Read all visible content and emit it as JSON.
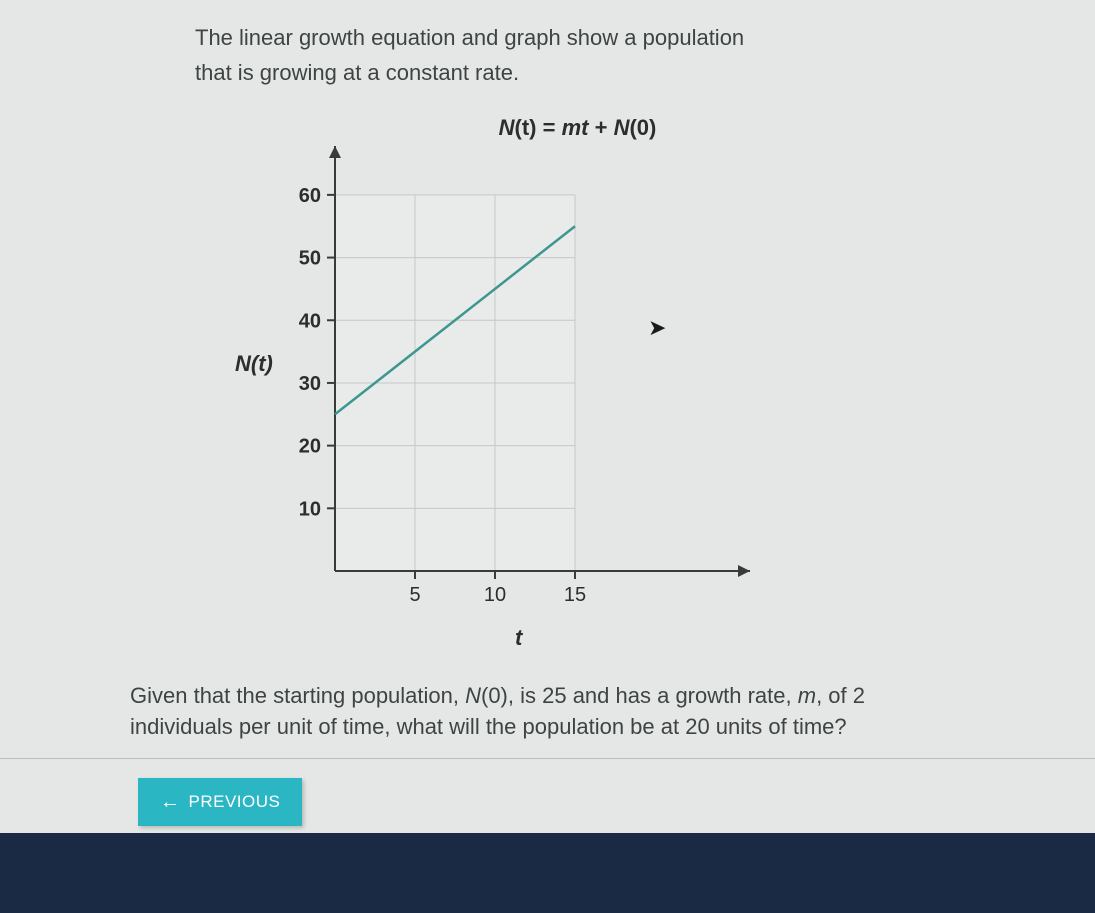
{
  "problem": {
    "line1": "The linear growth equation and graph show a population",
    "line2": "that is growing at a constant rate."
  },
  "equation": {
    "lhs_N": "N",
    "lhs_t": "(t)",
    "eq": " = ",
    "m": "m",
    "t": "t",
    "plus": " + ",
    "N0": "N",
    "zero": "(0)"
  },
  "chart": {
    "type": "line",
    "y_label": "N(t)",
    "x_label": "t",
    "x_ticks": [
      5,
      10,
      15
    ],
    "y_ticks": [
      10,
      20,
      30,
      40,
      50,
      60
    ],
    "xlim": [
      0,
      20
    ],
    "ylim": [
      0,
      67
    ],
    "grid_x": [
      5,
      10,
      15
    ],
    "grid_y": [
      10,
      20,
      30,
      40,
      50,
      60
    ],
    "line_points": [
      [
        0,
        25
      ],
      [
        15,
        55
      ]
    ],
    "line_color": "#3d9690",
    "line_width": 2.5,
    "grid_color": "#c5c8c7",
    "axis_color": "#3a3a3a",
    "tick_font_size": 20,
    "background_color": "#e5e7e6",
    "plot_background": "#e9ebea"
  },
  "question": {
    "part1": "Given that the starting population, ",
    "N0": "N",
    "N0_paren": "(0)",
    "part2": ", is 25 and has a growth rate, ",
    "m": "m",
    "part3": ", of 2 individuals per unit of time, what will the population be at 20 units of time?"
  },
  "buttons": {
    "previous": "PREVIOUS"
  }
}
